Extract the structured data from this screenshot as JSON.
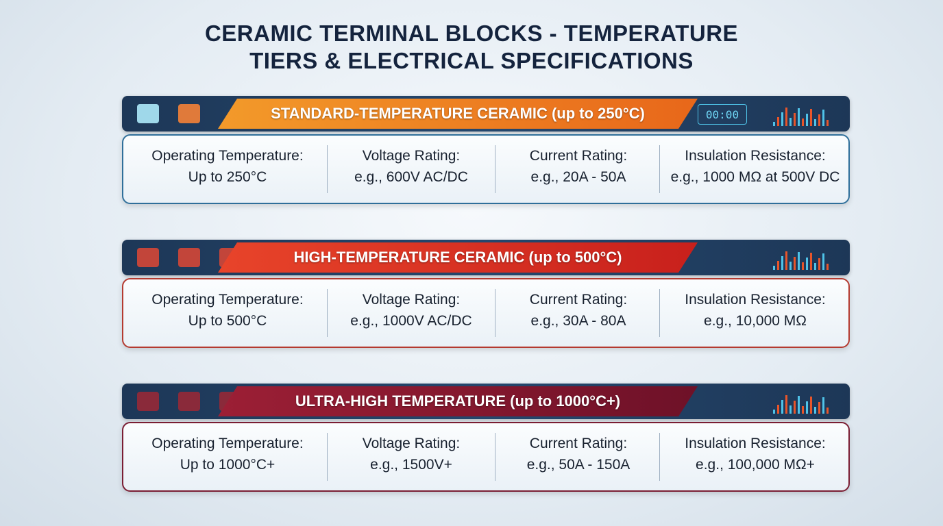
{
  "title": {
    "lines": [
      "CERAMIC TERMINAL BLOCKS - TEMPERATURE",
      "TIERS & ELECTRICAL SPECIFICATIONS"
    ]
  },
  "tiers": [
    {
      "header": "STANDARD-TEMPERATURE CERAMIC (up to 250°C)",
      "display": "00:00",
      "specs": [
        {
          "label": "Operating Temperature:",
          "value": "Up to 250°C"
        },
        {
          "label": "Voltage Rating:",
          "value": "e.g., 600V AC/DC"
        },
        {
          "label": "Current Rating:",
          "value": "e.g., 20A - 50A"
        },
        {
          "label": "Insulation Resistance:",
          "value": "e.g., 1000 MΩ at 500V DC"
        }
      ]
    },
    {
      "header": "HIGH-TEMPERATURE CERAMIC (up to 500°C)",
      "specs": [
        {
          "label": "Operating Temperature:",
          "value": "Up to 500°C"
        },
        {
          "label": "Voltage Rating:",
          "value": "e.g., 1000V AC/DC"
        },
        {
          "label": "Current Rating:",
          "value": "e.g., 30A - 80A"
        },
        {
          "label": "Insulation Resistance:",
          "value": "e.g., 10,000 MΩ"
        }
      ]
    },
    {
      "header": "ULTRA-HIGH TEMPERATURE (up to 1000°C+)",
      "specs": [
        {
          "label": "Operating Temperature:",
          "value": "Up to 1000°C+"
        },
        {
          "label": "Voltage Rating:",
          "value": "e.g., 1500V+"
        },
        {
          "label": "Current Rating:",
          "value": "e.g., 50A - 150A"
        },
        {
          "label": "Insulation Resistance:",
          "value": "e.g., 100,000 MΩ+"
        }
      ]
    }
  ]
}
